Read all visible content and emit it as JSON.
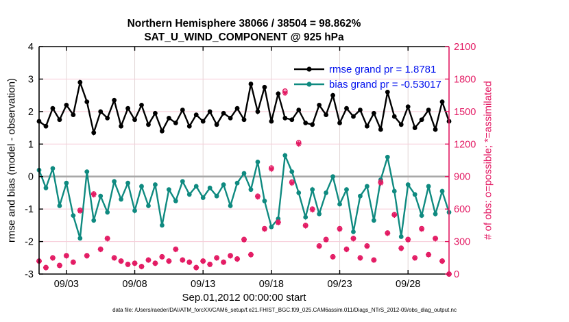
{
  "title": {
    "line1": "Northern Hemisphere 38066 / 38504 = 98.862%",
    "line2": "SAT_U_WIND_COMPONENT @ 925 hPa"
  },
  "legend": {
    "text_color": "#0010ee",
    "items": [
      {
        "name": "rmse",
        "label": "rmse grand pr = 1.8781",
        "color": "#000000"
      },
      {
        "name": "bias",
        "label": "bias grand pr = -0.53017",
        "color": "#0f8a80"
      }
    ]
  },
  "axes": {
    "left": {
      "label": "rmse and bias (model - observation)",
      "ticks": [
        4,
        3,
        2,
        1,
        0,
        -1,
        -2,
        -3
      ],
      "range": [
        -3,
        4
      ],
      "color": "#000000"
    },
    "right": {
      "label": "# of obs: o=possible; *=assimilated",
      "ticks": [
        2100,
        1800,
        1500,
        1200,
        900,
        600,
        300,
        0
      ],
      "range": [
        0,
        2100
      ],
      "color": "#e31a63"
    },
    "x": {
      "label": "Sep.01,2012 00:00:00 start",
      "tick_labels": [
        "09/03",
        "09/08",
        "09/13",
        "09/18",
        "09/23",
        "09/28"
      ],
      "tick_days": [
        2,
        7,
        12,
        17,
        22,
        27
      ],
      "range_days": [
        0,
        30
      ]
    }
  },
  "caption": "data file: /Users/raeder/DAI/ATM_forcXX/CAM6_setup/f.e21.FHIST_BGC.f09_025.CAM6assim.011/Diags_NTrS_2012-09/obs_diag_output.nc",
  "chart_data": {
    "type": "line",
    "title": "Northern Hemisphere 38066 / 38504 = 98.862% — SAT_U_WIND_COMPONENT @ 925 hPa",
    "x_axis": {
      "start_day": 0,
      "step_days": 0.5,
      "count": 61,
      "start_date": "2012-09-01 00:00:00"
    },
    "grid": {
      "horizontal_color": "#f7ccd8",
      "vertical_color": "#e2d6d6",
      "zero_line_color": "#a8a8a8"
    },
    "left_ylim": [
      -3,
      4
    ],
    "right_ylim": [
      0,
      2100
    ],
    "legend_position": "upper right inside",
    "series": [
      {
        "name": "rmse",
        "axis": "left",
        "style": "line+marker",
        "marker": "filled-circle",
        "color": "#000000",
        "values": [
          1.7,
          1.55,
          2.1,
          1.75,
          2.2,
          1.9,
          2.9,
          2.3,
          1.35,
          2.0,
          1.8,
          2.35,
          1.55,
          2.1,
          1.75,
          2.2,
          1.6,
          1.95,
          1.4,
          1.8,
          1.65,
          2.05,
          1.55,
          1.9,
          1.7,
          2.0,
          1.6,
          1.95,
          1.8,
          2.1,
          1.75,
          2.85,
          2.0,
          2.75,
          1.7,
          2.55,
          1.8,
          1.75,
          2.05,
          1.65,
          1.6,
          2.2,
          1.9,
          2.5,
          1.65,
          2.1,
          1.85,
          2.05,
          1.55,
          1.95,
          1.45,
          2.6,
          1.85,
          1.6,
          2.15,
          1.5,
          1.75,
          2.05,
          1.45,
          2.3,
          1.7
        ]
      },
      {
        "name": "bias",
        "axis": "left",
        "style": "line+marker",
        "marker": "filled-circle",
        "color": "#0f8a80",
        "values": [
          0.2,
          -0.35,
          0.25,
          -0.9,
          -0.2,
          -1.2,
          -1.9,
          0.15,
          -1.35,
          -0.6,
          -1.1,
          -0.15,
          -0.7,
          -0.2,
          -1.05,
          -0.3,
          -0.9,
          -0.25,
          -1.5,
          -0.4,
          -0.75,
          -0.15,
          -0.55,
          -0.3,
          -0.65,
          -0.35,
          -0.6,
          -0.25,
          -0.9,
          -0.2,
          0.1,
          -0.4,
          0.45,
          -0.75,
          -1.55,
          -1.3,
          0.65,
          0.15,
          -0.5,
          -1.25,
          -0.4,
          -1.15,
          -0.5,
          0.0,
          -0.85,
          -0.4,
          -1.7,
          -0.6,
          -0.3,
          -1.35,
          -0.1,
          0.6,
          -0.45,
          -1.85,
          -0.25,
          -0.55,
          -1.2,
          -0.3,
          -1.15,
          -0.45,
          -1.1
        ]
      },
      {
        "name": "possible_obs",
        "axis": "right",
        "style": "scatter",
        "marker": "circle-outline",
        "color": "#e31a63",
        "values": [
          120,
          60,
          150,
          80,
          170,
          110,
          590,
          170,
          740,
          230,
          330,
          150,
          120,
          90,
          100,
          70,
          130,
          100,
          160,
          120,
          230,
          130,
          110,
          60,
          120,
          90,
          150,
          110,
          170,
          140,
          320,
          180,
          720,
          420,
          980,
          480,
          1690,
          850,
          1215,
          450,
          600,
          260,
          320,
          160,
          420,
          230,
          330,
          150,
          260,
          130,
          850,
          380,
          550,
          240,
          320,
          150,
          420,
          180,
          330,
          120,
          0
        ]
      },
      {
        "name": "assimilated_obs",
        "axis": "right",
        "style": "scatter",
        "marker": "asterisk",
        "color": "#e31a63",
        "values": [
          119,
          59,
          148,
          79,
          168,
          109,
          583,
          168,
          732,
          227,
          326,
          148,
          119,
          89,
          99,
          69,
          129,
          99,
          158,
          119,
          227,
          129,
          109,
          59,
          119,
          89,
          148,
          109,
          168,
          138,
          316,
          178,
          712,
          415,
          969,
          475,
          1671,
          840,
          1201,
          445,
          593,
          257,
          316,
          158,
          415,
          227,
          326,
          148,
          257,
          129,
          840,
          376,
          544,
          237,
          316,
          148,
          415,
          178,
          326,
          119,
          0
        ]
      }
    ]
  }
}
